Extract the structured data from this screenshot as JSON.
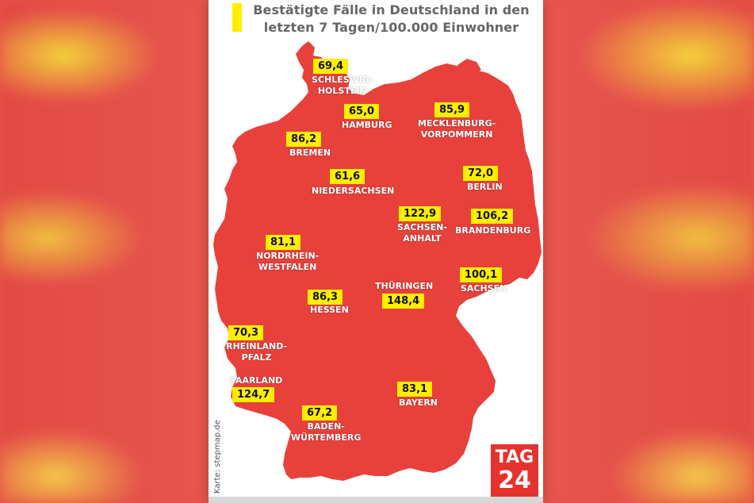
{
  "title": {
    "line1": "Bestätigte Fälle in Deutschland in den",
    "line2": "letzten 7 Tagen/100.000 Einwohner"
  },
  "colors": {
    "map_fill": "#e8413c",
    "label_box": "#ffee00",
    "logo_bg": "#e5322d"
  },
  "credit": "Karte: stepmap.de",
  "logo": {
    "line1": "TAG",
    "line2": "24"
  },
  "states": [
    {
      "name": "SCHLESWIG-\nHOLSTEIN",
      "value": "69,4"
    },
    {
      "name": "HAMBURG",
      "value": "65,0"
    },
    {
      "name": "MECKLENBURG-\nVORPOMMERN",
      "value": "85,9"
    },
    {
      "name": "BREMEN",
      "value": "86,2"
    },
    {
      "name": "NIEDERSACHSEN",
      "value": "61,6"
    },
    {
      "name": "BERLIN",
      "value": "72,0"
    },
    {
      "name": "SACHSEN-\nANHALT",
      "value": "122,9"
    },
    {
      "name": "BRANDENBURG",
      "value": "106,2"
    },
    {
      "name": "NORDRHEIN-\nWESTFALEN",
      "value": "81,1"
    },
    {
      "name": "THÜRINGEN",
      "value": "148,4"
    },
    {
      "name": "SACHSEN",
      "value": "100,1"
    },
    {
      "name": "HESSEN",
      "value": "86,3"
    },
    {
      "name": "RHEINLAND-\nPFALZ",
      "value": "70,3"
    },
    {
      "name": "SAARLAND",
      "value": "124,7"
    },
    {
      "name": "BAYERN",
      "value": "83,1"
    },
    {
      "name": "BADEN-\nWÜRTEMBERG",
      "value": "67,2"
    }
  ]
}
